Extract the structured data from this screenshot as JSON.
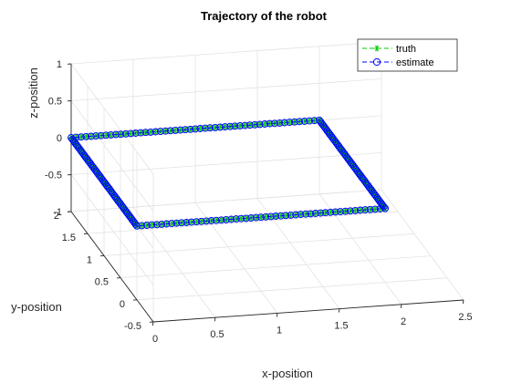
{
  "chart_data": {
    "type": "line",
    "title": "Trajectory of the robot",
    "xlabel": "x-position",
    "ylabel": "y-position",
    "zlabel": "z-position",
    "xlim": [
      0,
      2.5
    ],
    "ylim": [
      -0.5,
      2
    ],
    "zlim": [
      -1,
      1
    ],
    "grid": true,
    "legend_position": "top-right",
    "xticks": [
      "0",
      "0.5",
      "1",
      "1.5",
      "2",
      "2.5"
    ],
    "yticks": [
      "-0.5",
      "0",
      "0.5",
      "1",
      "1.5",
      "2"
    ],
    "zticks": [
      "-1",
      "-0.5",
      "0",
      "0.5",
      "1"
    ],
    "series": [
      {
        "name": "truth",
        "color": "#00cc00",
        "marker": "asterisk",
        "vertices": [
          [
            2,
            0,
            0
          ],
          [
            2,
            2,
            0
          ],
          [
            0,
            2,
            0
          ],
          [
            0,
            0,
            0
          ],
          [
            2,
            0,
            0
          ]
        ]
      },
      {
        "name": "estimate",
        "color": "#0000ff",
        "marker": "circle",
        "vertices": [
          [
            2,
            0,
            0
          ],
          [
            2,
            2,
            0
          ],
          [
            0,
            2,
            0
          ],
          [
            0,
            0,
            0
          ],
          [
            2,
            0,
            0
          ]
        ]
      }
    ]
  }
}
